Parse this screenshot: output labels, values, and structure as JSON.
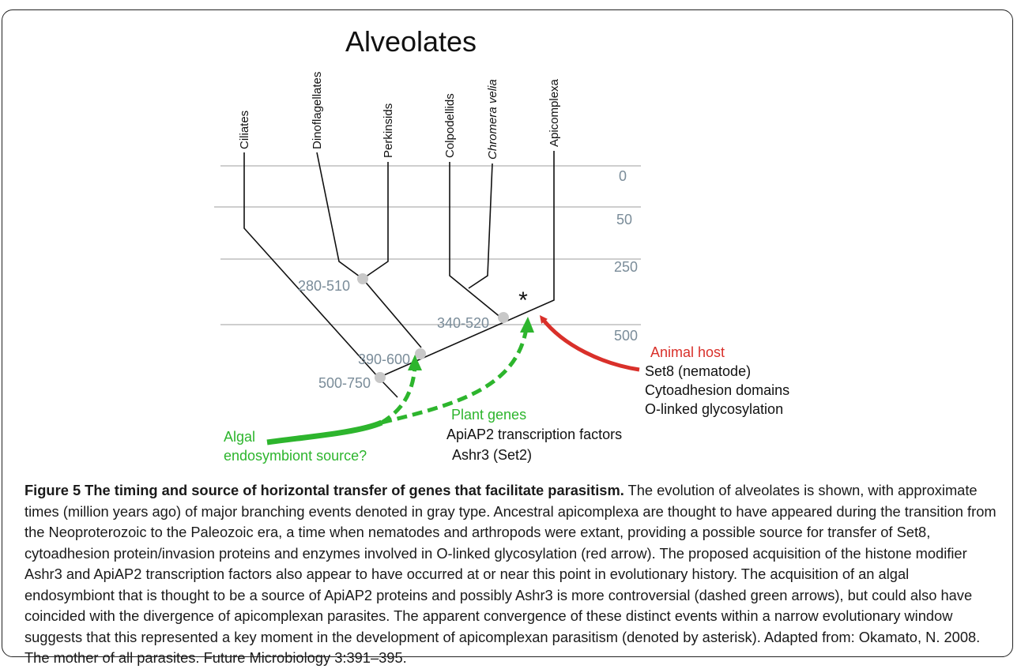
{
  "figure": {
    "title": "Alveolates",
    "taxa": [
      {
        "label": "Ciliates",
        "italic": false
      },
      {
        "label": "Dinoflagellates",
        "italic": false
      },
      {
        "label": "Perkinsids",
        "italic": false
      },
      {
        "label": "Colpodellids",
        "italic": false
      },
      {
        "label": "Chromera velia",
        "italic": true
      },
      {
        "label": "Apicomplexa",
        "italic": false
      }
    ],
    "time_scale": [
      "0",
      "50",
      "250",
      "500"
    ],
    "node_ages": [
      "280-510",
      "340-520",
      "390-600",
      "500-750"
    ],
    "asterisk": "*",
    "animal_host": {
      "heading": "Animal host",
      "items": [
        "Set8 (nematode)",
        "Cytoadhesion domains",
        "O-linked glycosylation"
      ]
    },
    "plant_genes": {
      "heading": "Plant genes",
      "items": [
        "ApiAP2 transcription factors",
        "Ashr3 (Set2)"
      ]
    },
    "algal_source": {
      "line1": "Algal",
      "line2": "endosymbiont source?"
    },
    "colors": {
      "red_arrow": "#d9302a",
      "green_arrow": "#2db52d",
      "gray_text": "#7a8c99",
      "node_dot": "#c8c8c8",
      "grid_line": "#b0b0b0"
    }
  },
  "caption": {
    "label": "Figure 5 The timing and source of horizontal transfer of genes that facilitate parasitism.",
    "text": " The evolution of alveolates is shown, with approximate times (million years ago) of major branching events denoted in gray type. Ancestral apicomplexa are thought to have appeared during the transition from the Neoproterozoic to the Paleozoic era, a time when nematodes and arthropods were extant, providing a possible source for transfer of Set8, cytoadhesion protein/invasion proteins and enzymes involved in O-linked glycosylation (red arrow). The proposed acquisition of the histone modifier Ashr3 and ApiAP2 transcription factors also appear to have occurred at or near this point in evolutionary history. The acquisition of an algal endosymbiont that is thought to be a source of ApiAP2 proteins and possibly Ashr3 is more controversial (dashed green arrows), but could also have coincided with the divergence of apicomplexan parasites. The apparent convergence of these distinct events within a narrow evolutionary window suggests that this represented a key moment in the development of apicomplexan parasitism (denoted by asterisk). Adapted from: Okamato, N. 2008. The mother of all parasites. Future Microbiology 3:391–395."
  }
}
